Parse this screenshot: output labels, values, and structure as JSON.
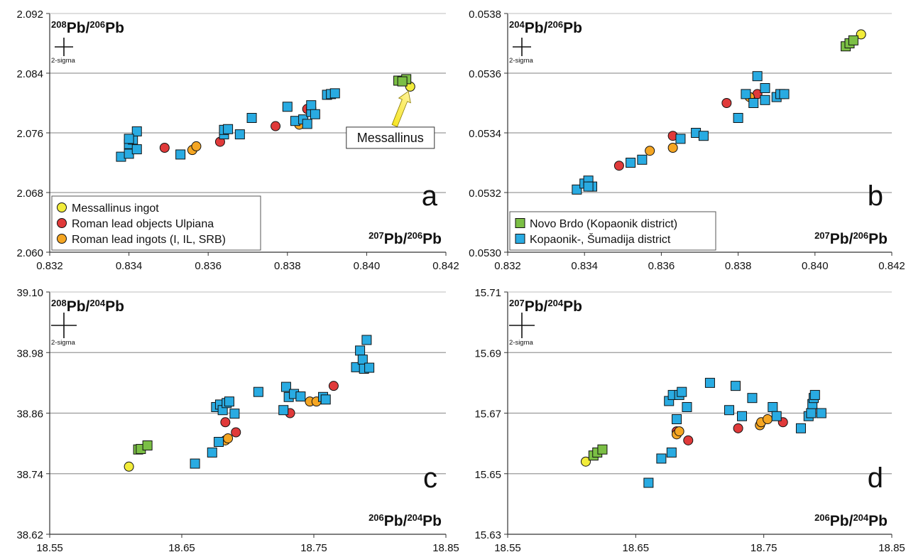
{
  "colors": {
    "messallinus": "#f2ec3a",
    "ulpiana": "#e03a3a",
    "roman_ingots": "#f5a623",
    "novo_brdo": "#7bbf45",
    "kopaonik": "#29abe2",
    "grid": "#9a9a9a",
    "axis": "#333333",
    "arrow": "#f5e41a"
  },
  "chart_data": [
    {
      "panel": "a",
      "type": "scatter",
      "ylabel": {
        "sup1": "208",
        "base1": "Pb/",
        "sup2": "206",
        "base2": "Pb"
      },
      "xlabel": {
        "sup1": "207",
        "base1": "Pb/",
        "sup2": "206",
        "base2": "Pb"
      },
      "error_label": "2-sigma",
      "panel_letter": "a",
      "xlim": [
        0.832,
        0.842
      ],
      "ylim": [
        2.06,
        2.092
      ],
      "xticks": [
        "0.832",
        "0.834",
        "0.836",
        "0.838",
        "0.840",
        "0.842"
      ],
      "yticks": [
        "2.060",
        "2.068",
        "2.076",
        "2.084",
        "2.092"
      ],
      "gridlines_y": [
        2.068,
        2.076,
        2.084
      ],
      "legend": {
        "position": "bottom-left",
        "entries": [
          {
            "label": "Messallinus ingot",
            "series": "messallinus"
          },
          {
            "label": "Roman lead objects Ulpiana",
            "series": "ulpiana"
          },
          {
            "label": "Roman lead ingots (I, IL, SRB)",
            "series": "roman_ingots"
          }
        ]
      },
      "annotation": {
        "text": "Messallinus",
        "target": [
          0.8411,
          2.0822
        ]
      },
      "series": [
        {
          "key": "messallinus",
          "marker": "circle",
          "points": [
            [
              0.8411,
              2.0822
            ]
          ]
        },
        {
          "key": "ulpiana",
          "marker": "circle",
          "points": [
            [
              0.8349,
              2.074
            ],
            [
              0.8363,
              2.0748
            ],
            [
              0.8377,
              2.0769
            ],
            [
              0.8385,
              2.0792
            ]
          ]
        },
        {
          "key": "roman_ingots",
          "marker": "circle",
          "points": [
            [
              0.8356,
              2.0737
            ],
            [
              0.8357,
              2.0742
            ],
            [
              0.8383,
              2.0771
            ]
          ]
        },
        {
          "key": "novo_brdo",
          "marker": "square",
          "points": [
            [
              0.8408,
              2.083
            ],
            [
              0.841,
              2.0832
            ],
            [
              0.8409,
              2.0829
            ]
          ]
        },
        {
          "key": "kopaonik",
          "marker": "square",
          "points": [
            [
              0.8338,
              2.0728
            ],
            [
              0.834,
              2.0732
            ],
            [
              0.834,
              2.0745
            ],
            [
              0.8342,
              2.0738
            ],
            [
              0.8341,
              2.0751
            ],
            [
              0.8342,
              2.0762
            ],
            [
              0.834,
              2.0752
            ],
            [
              0.8353,
              2.0731
            ],
            [
              0.8364,
              2.0758
            ],
            [
              0.8364,
              2.0764
            ],
            [
              0.8365,
              2.0765
            ],
            [
              0.8368,
              2.0758
            ],
            [
              0.8371,
              2.078
            ],
            [
              0.838,
              2.0795
            ],
            [
              0.8382,
              2.0776
            ],
            [
              0.8384,
              2.0778
            ],
            [
              0.8385,
              2.0772
            ],
            [
              0.8386,
              2.0788
            ],
            [
              0.8386,
              2.0797
            ],
            [
              0.8387,
              2.0785
            ],
            [
              0.839,
              2.0811
            ],
            [
              0.8391,
              2.0812
            ],
            [
              0.8392,
              2.0813
            ]
          ]
        }
      ]
    },
    {
      "panel": "b",
      "type": "scatter",
      "ylabel": {
        "sup1": "204",
        "base1": "Pb/",
        "sup2": "206",
        "base2": "Pb"
      },
      "xlabel": {
        "sup1": "207",
        "base1": "Pb/",
        "sup2": "206",
        "base2": "Pb"
      },
      "error_label": "2-sigma",
      "panel_letter": "b",
      "xlim": [
        0.832,
        0.842
      ],
      "ylim": [
        0.053,
        0.0538
      ],
      "xticks": [
        "0.832",
        "0.834",
        "0.836",
        "0.838",
        "0.840",
        "0.842"
      ],
      "yticks": [
        "0.0530",
        "0.0532",
        "0.0534",
        "0.0536",
        "0.0538"
      ],
      "gridlines_y": [
        0.0532,
        0.0534,
        0.0536
      ],
      "legend": {
        "position": "bottom-left",
        "entries": [
          {
            "label": "Novo Brdo (Kopaonik district)",
            "series": "novo_brdo"
          },
          {
            "label": "Kopaonik-, Šumadija district",
            "series": "kopaonik"
          }
        ]
      },
      "series": [
        {
          "key": "messallinus",
          "marker": "circle",
          "points": [
            [
              0.8412,
              0.05373
            ]
          ]
        },
        {
          "key": "ulpiana",
          "marker": "circle",
          "points": [
            [
              0.8349,
              0.05329
            ],
            [
              0.8363,
              0.05339
            ],
            [
              0.8377,
              0.0535
            ],
            [
              0.8385,
              0.05353
            ]
          ]
        },
        {
          "key": "roman_ingots",
          "marker": "circle",
          "points": [
            [
              0.8357,
              0.05334
            ],
            [
              0.8363,
              0.05335
            ],
            [
              0.8383,
              0.05352
            ]
          ]
        },
        {
          "key": "novo_brdo",
          "marker": "square",
          "points": [
            [
              0.8408,
              0.05369
            ],
            [
              0.8409,
              0.0537
            ],
            [
              0.841,
              0.05371
            ]
          ]
        },
        {
          "key": "kopaonik",
          "marker": "square",
          "points": [
            [
              0.8338,
              0.05321
            ],
            [
              0.834,
              0.05323
            ],
            [
              0.8341,
              0.05324
            ],
            [
              0.8342,
              0.05322
            ],
            [
              0.8341,
              0.05322
            ],
            [
              0.8352,
              0.0533
            ],
            [
              0.8355,
              0.05331
            ],
            [
              0.8365,
              0.05338
            ],
            [
              0.8369,
              0.0534
            ],
            [
              0.8371,
              0.05339
            ],
            [
              0.838,
              0.05345
            ],
            [
              0.8382,
              0.05353
            ],
            [
              0.8384,
              0.0535
            ],
            [
              0.8385,
              0.05359
            ],
            [
              0.8387,
              0.05355
            ],
            [
              0.8387,
              0.05351
            ],
            [
              0.839,
              0.05352
            ],
            [
              0.8391,
              0.05353
            ],
            [
              0.8392,
              0.05353
            ]
          ]
        }
      ]
    },
    {
      "panel": "c",
      "type": "scatter",
      "ylabel": {
        "sup1": "208",
        "base1": "Pb/",
        "sup2": "204",
        "base2": "Pb"
      },
      "xlabel": {
        "sup1": "206",
        "base1": "Pb/",
        "sup2": "204",
        "base2": "Pb"
      },
      "error_label": "2-sigma",
      "panel_letter": "c",
      "xlim": [
        18.55,
        18.85
      ],
      "ylim": [
        38.62,
        39.1
      ],
      "xticks": [
        "18.55",
        "18.65",
        "18.75",
        "18.85"
      ],
      "yticks": [
        "38.62",
        "38.74",
        "38.86",
        "38.98",
        "39.10"
      ],
      "gridlines_y": [
        38.74,
        38.86,
        38.98
      ],
      "series": [
        {
          "key": "messallinus",
          "marker": "circle",
          "points": [
            [
              18.61,
              38.754
            ]
          ]
        },
        {
          "key": "ulpiana",
          "marker": "circle",
          "points": [
            [
              18.683,
              38.842
            ],
            [
              18.691,
              38.822
            ],
            [
              18.732,
              38.86
            ],
            [
              18.765,
              38.914
            ]
          ]
        },
        {
          "key": "roman_ingots",
          "marker": "circle",
          "points": [
            [
              18.683,
              38.806
            ],
            [
              18.685,
              38.81
            ],
            [
              18.747,
              38.883
            ],
            [
              18.752,
              38.883
            ]
          ]
        },
        {
          "key": "novo_brdo",
          "marker": "square",
          "points": [
            [
              18.617,
              38.788
            ],
            [
              18.619,
              38.789
            ],
            [
              18.624,
              38.796
            ]
          ]
        },
        {
          "key": "kopaonik",
          "marker": "square",
          "points": [
            [
              18.66,
              38.76
            ],
            [
              18.673,
              38.782
            ],
            [
              18.678,
              38.803
            ],
            [
              18.676,
              38.872
            ],
            [
              18.679,
              38.877
            ],
            [
              18.681,
              38.866
            ],
            [
              18.684,
              38.88
            ],
            [
              18.686,
              38.883
            ],
            [
              18.69,
              38.859
            ],
            [
              18.708,
              38.902
            ],
            [
              18.727,
              38.866
            ],
            [
              18.729,
              38.912
            ],
            [
              18.731,
              38.892
            ],
            [
              18.735,
              38.898
            ],
            [
              18.74,
              38.893
            ],
            [
              18.757,
              38.892
            ],
            [
              18.759,
              38.887
            ],
            [
              18.782,
              38.951
            ],
            [
              18.785,
              38.984
            ],
            [
              18.787,
              38.966
            ],
            [
              18.788,
              38.948
            ],
            [
              18.79,
              39.005
            ],
            [
              18.792,
              38.95
            ]
          ]
        }
      ]
    },
    {
      "panel": "d",
      "type": "scatter",
      "ylabel": {
        "sup1": "207",
        "base1": "Pb/",
        "sup2": "204",
        "base2": "Pb"
      },
      "xlabel": {
        "sup1": "206",
        "base1": "Pb/",
        "sup2": "204",
        "base2": "Pb"
      },
      "error_label": "2-sigma",
      "panel_letter": "d",
      "xlim": [
        18.55,
        18.85
      ],
      "ylim": [
        15.63,
        15.71
      ],
      "xticks": [
        "18.55",
        "18.65",
        "18.75",
        "18.85"
      ],
      "yticks": [
        "15.63",
        "15.65",
        "15.67",
        "15.69",
        "15.71"
      ],
      "gridlines_y": [
        15.65,
        15.67,
        15.69
      ],
      "series": [
        {
          "key": "messallinus",
          "marker": "circle",
          "points": [
            [
              18.611,
              15.654
            ]
          ]
        },
        {
          "key": "ulpiana",
          "marker": "circle",
          "points": [
            [
              18.682,
              15.664
            ],
            [
              18.691,
              15.661
            ],
            [
              18.73,
              15.665
            ],
            [
              18.765,
              15.667
            ]
          ]
        },
        {
          "key": "roman_ingots",
          "marker": "circle",
          "points": [
            [
              18.682,
              15.663
            ],
            [
              18.684,
              15.664
            ],
            [
              18.747,
              15.666
            ],
            [
              18.748,
              15.667
            ],
            [
              18.753,
              15.668
            ]
          ]
        },
        {
          "key": "novo_brdo",
          "marker": "square",
          "points": [
            [
              18.617,
              15.656
            ],
            [
              18.62,
              15.657
            ],
            [
              18.624,
              15.658
            ]
          ]
        },
        {
          "key": "kopaonik",
          "marker": "square",
          "points": [
            [
              18.66,
              15.647
            ],
            [
              18.67,
              15.655
            ],
            [
              18.678,
              15.657
            ],
            [
              18.676,
              15.674
            ],
            [
              18.679,
              15.676
            ],
            [
              18.682,
              15.668
            ],
            [
              18.684,
              15.676
            ],
            [
              18.686,
              15.677
            ],
            [
              18.69,
              15.672
            ],
            [
              18.708,
              15.68
            ],
            [
              18.723,
              15.671
            ],
            [
              18.728,
              15.679
            ],
            [
              18.733,
              15.669
            ],
            [
              18.741,
              15.675
            ],
            [
              18.757,
              15.672
            ],
            [
              18.76,
              15.669
            ],
            [
              18.779,
              15.665
            ],
            [
              18.785,
              15.669
            ],
            [
              18.787,
              15.67
            ],
            [
              18.788,
              15.673
            ],
            [
              18.789,
              15.675
            ],
            [
              18.79,
              15.676
            ],
            [
              18.795,
              15.67
            ]
          ]
        }
      ]
    }
  ]
}
